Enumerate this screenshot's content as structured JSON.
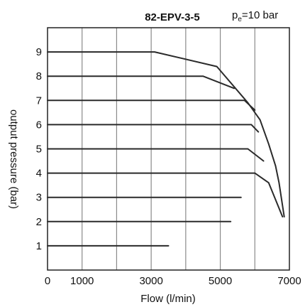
{
  "chart_data": {
    "type": "line",
    "title": "82-EPV-3-5",
    "subtitle_main": "p",
    "subtitle_sub": "e",
    "subtitle_rest": "=10 bar",
    "xlabel": "Flow (l/min)",
    "ylabel": "output pressure (bar)",
    "xlim": [
      0,
      7000
    ],
    "ylim": [
      0,
      10
    ],
    "x_ticks": [
      0,
      1000,
      3000,
      5000,
      7000
    ],
    "x_tick_labels": [
      "0",
      "1000",
      "3000",
      "5000",
      "7000"
    ],
    "y_ticks": [
      1,
      2,
      3,
      4,
      5,
      6,
      7,
      8,
      9
    ],
    "y_tick_labels": [
      "1",
      "2",
      "3",
      "4",
      "5",
      "6",
      "7",
      "8",
      "9"
    ],
    "x_grid": [
      1000,
      2000,
      3000,
      4000,
      5000,
      6000
    ],
    "grid": true,
    "legend": "none",
    "series": [
      {
        "values": [
          [
            0,
            1
          ],
          [
            3500,
            1
          ]
        ]
      },
      {
        "values": [
          [
            0,
            2
          ],
          [
            5300,
            2
          ]
        ]
      },
      {
        "values": [
          [
            0,
            3
          ],
          [
            5600,
            3
          ]
        ]
      },
      {
        "values": [
          [
            0,
            4
          ],
          [
            6000,
            4
          ],
          [
            6400,
            3.6
          ],
          [
            6800,
            2.2
          ]
        ]
      },
      {
        "values": [
          [
            0,
            5
          ],
          [
            5800,
            5
          ],
          [
            6250,
            4.5
          ]
        ]
      },
      {
        "values": [
          [
            0,
            6
          ],
          [
            5900,
            6
          ],
          [
            6100,
            5.7
          ]
        ]
      },
      {
        "values": [
          [
            0,
            7
          ],
          [
            5700,
            7
          ],
          [
            6000,
            6.6
          ]
        ]
      },
      {
        "values": [
          [
            0,
            8
          ],
          [
            4500,
            8
          ],
          [
            5400,
            7.5
          ]
        ]
      },
      {
        "values": [
          [
            0,
            9
          ],
          [
            3100,
            9
          ],
          [
            4900,
            8.4
          ],
          [
            5800,
            6.9
          ],
          [
            6150,
            6.2
          ],
          [
            6400,
            5.2
          ],
          [
            6600,
            4.3
          ],
          [
            6700,
            3.6
          ],
          [
            6850,
            2.2
          ]
        ]
      }
    ]
  }
}
